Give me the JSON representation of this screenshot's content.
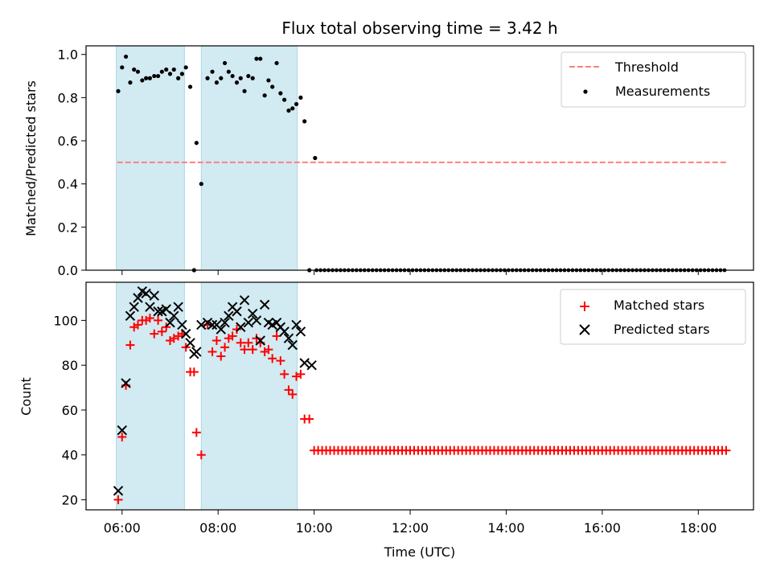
{
  "chart_data": {
    "type": "scatter",
    "title": "Flux total observing time = 3.42 h",
    "xlabel": "Time (UTC)",
    "x_unit": "hours UTC",
    "xlim": [
      5.25,
      19.15
    ],
    "x_ticks": [
      6,
      8,
      10,
      12,
      14,
      16,
      18
    ],
    "x_tick_labels": [
      "06:00",
      "08:00",
      "10:00",
      "12:00",
      "14:00",
      "16:00",
      "18:00"
    ],
    "observing_windows": [
      [
        5.88,
        7.3
      ],
      [
        7.65,
        9.65
      ]
    ],
    "colors": {
      "window": "#add8e6",
      "threshold": "#ff7f7f",
      "matched": "#ff0000",
      "predicted": "#000000",
      "measurement": "#000000"
    },
    "top": {
      "ylabel": "Matched/Predicted stars",
      "ylim": [
        0,
        1.04
      ],
      "y_ticks": [
        0.0,
        0.2,
        0.4,
        0.6,
        0.8,
        1.0
      ],
      "y_tick_labels": [
        "0.0",
        "0.2",
        "0.4",
        "0.6",
        "0.8",
        "1.0"
      ],
      "threshold": {
        "value": 0.5,
        "x_range": [
          5.9,
          18.6
        ],
        "label": "Threshold"
      },
      "measurements_label": "Measurements",
      "measurements": [
        [
          5.92,
          0.83
        ],
        [
          6.0,
          0.94
        ],
        [
          6.08,
          0.99
        ],
        [
          6.17,
          0.87
        ],
        [
          6.25,
          0.93
        ],
        [
          6.33,
          0.92
        ],
        [
          6.42,
          0.88
        ],
        [
          6.5,
          0.89
        ],
        [
          6.58,
          0.89
        ],
        [
          6.67,
          0.9
        ],
        [
          6.75,
          0.9
        ],
        [
          6.83,
          0.92
        ],
        [
          6.92,
          0.93
        ],
        [
          7.0,
          0.91
        ],
        [
          7.08,
          0.93
        ],
        [
          7.17,
          0.89
        ],
        [
          7.25,
          0.91
        ],
        [
          7.33,
          0.94
        ],
        [
          7.42,
          0.85
        ],
        [
          7.5,
          0.0
        ],
        [
          7.55,
          0.59
        ],
        [
          7.65,
          0.4
        ],
        [
          7.78,
          0.89
        ],
        [
          7.88,
          0.92
        ],
        [
          7.97,
          0.87
        ],
        [
          8.06,
          0.89
        ],
        [
          8.14,
          0.96
        ],
        [
          8.22,
          0.92
        ],
        [
          8.3,
          0.9
        ],
        [
          8.39,
          0.87
        ],
        [
          8.47,
          0.89
        ],
        [
          8.55,
          0.83
        ],
        [
          8.63,
          0.9
        ],
        [
          8.72,
          0.89
        ],
        [
          8.8,
          0.98
        ],
        [
          8.88,
          0.98
        ],
        [
          8.97,
          0.81
        ],
        [
          9.05,
          0.88
        ],
        [
          9.13,
          0.85
        ],
        [
          9.22,
          0.96
        ],
        [
          9.3,
          0.82
        ],
        [
          9.38,
          0.79
        ],
        [
          9.47,
          0.74
        ],
        [
          9.55,
          0.75
        ],
        [
          9.63,
          0.77
        ],
        [
          9.72,
          0.8
        ],
        [
          9.8,
          0.69
        ],
        [
          9.9,
          0.0
        ],
        [
          10.02,
          0.52
        ]
      ],
      "zero_series": {
        "start": 10.05,
        "end": 18.6,
        "step": 0.0833,
        "value": 0.0
      }
    },
    "bottom": {
      "ylabel": "Count",
      "ylim": [
        15.5,
        117
      ],
      "y_ticks": [
        20,
        40,
        60,
        80,
        100
      ],
      "y_tick_labels": [
        "20",
        "40",
        "60",
        "80",
        "100"
      ],
      "series": [
        {
          "name": "Matched stars",
          "marker": "plus",
          "points": [
            [
              5.92,
              20
            ],
            [
              6.0,
              48
            ],
            [
              6.08,
              71
            ],
            [
              6.17,
              89
            ],
            [
              6.25,
              97
            ],
            [
              6.33,
              98
            ],
            [
              6.42,
              100
            ],
            [
              6.5,
              100
            ],
            [
              6.58,
              101
            ],
            [
              6.67,
              94
            ],
            [
              6.75,
              100
            ],
            [
              6.83,
              95
            ],
            [
              6.92,
              97
            ],
            [
              7.0,
              91
            ],
            [
              7.08,
              92
            ],
            [
              7.17,
              93
            ],
            [
              7.25,
              94
            ],
            [
              7.33,
              88
            ],
            [
              7.42,
              77
            ],
            [
              7.5,
              77
            ],
            [
              7.55,
              50
            ],
            [
              7.65,
              40
            ],
            [
              7.78,
              98
            ],
            [
              7.88,
              86
            ],
            [
              7.97,
              91
            ],
            [
              8.06,
              84
            ],
            [
              8.14,
              88
            ],
            [
              8.22,
              92
            ],
            [
              8.3,
              93
            ],
            [
              8.39,
              96
            ],
            [
              8.47,
              90
            ],
            [
              8.55,
              87
            ],
            [
              8.63,
              90
            ],
            [
              8.72,
              87
            ],
            [
              8.8,
              92
            ],
            [
              8.88,
              90
            ],
            [
              8.97,
              86
            ],
            [
              9.05,
              87
            ],
            [
              9.13,
              83
            ],
            [
              9.22,
              93
            ],
            [
              9.3,
              82
            ],
            [
              9.38,
              76
            ],
            [
              9.47,
              69
            ],
            [
              9.55,
              67
            ],
            [
              9.63,
              75
            ],
            [
              9.72,
              76
            ],
            [
              9.8,
              56
            ],
            [
              9.9,
              56
            ]
          ],
          "constant_series": {
            "start": 10.0,
            "end": 18.6,
            "step": 0.0833,
            "value": 42
          }
        },
        {
          "name": "Predicted stars",
          "marker": "x",
          "points": [
            [
              5.92,
              24
            ],
            [
              6.0,
              51
            ],
            [
              6.08,
              72
            ],
            [
              6.17,
              102
            ],
            [
              6.25,
              106
            ],
            [
              6.33,
              110
            ],
            [
              6.42,
              113
            ],
            [
              6.5,
              112
            ],
            [
              6.58,
              106
            ],
            [
              6.67,
              111
            ],
            [
              6.75,
              104
            ],
            [
              6.83,
              104
            ],
            [
              6.92,
              105
            ],
            [
              7.0,
              99
            ],
            [
              7.08,
              102
            ],
            [
              7.17,
              106
            ],
            [
              7.25,
              98
            ],
            [
              7.33,
              94
            ],
            [
              7.42,
              90
            ],
            [
              7.5,
              85
            ],
            [
              7.55,
              86
            ],
            [
              7.65,
              98
            ],
            [
              7.78,
              99
            ],
            [
              7.88,
              98
            ],
            [
              7.97,
              98
            ],
            [
              8.06,
              96
            ],
            [
              8.14,
              99
            ],
            [
              8.22,
              102
            ],
            [
              8.3,
              106
            ],
            [
              8.39,
              104
            ],
            [
              8.47,
              97
            ],
            [
              8.55,
              109
            ],
            [
              8.63,
              99
            ],
            [
              8.72,
              103
            ],
            [
              8.8,
              100
            ],
            [
              8.88,
              91
            ],
            [
              8.97,
              107
            ],
            [
              9.05,
              99
            ],
            [
              9.13,
              98
            ],
            [
              9.22,
              99
            ],
            [
              9.3,
              97
            ],
            [
              9.38,
              95
            ],
            [
              9.47,
              92
            ],
            [
              9.55,
              89
            ],
            [
              9.63,
              98
            ],
            [
              9.72,
              95
            ],
            [
              9.8,
              81
            ],
            [
              9.95,
              80
            ]
          ]
        }
      ]
    }
  }
}
